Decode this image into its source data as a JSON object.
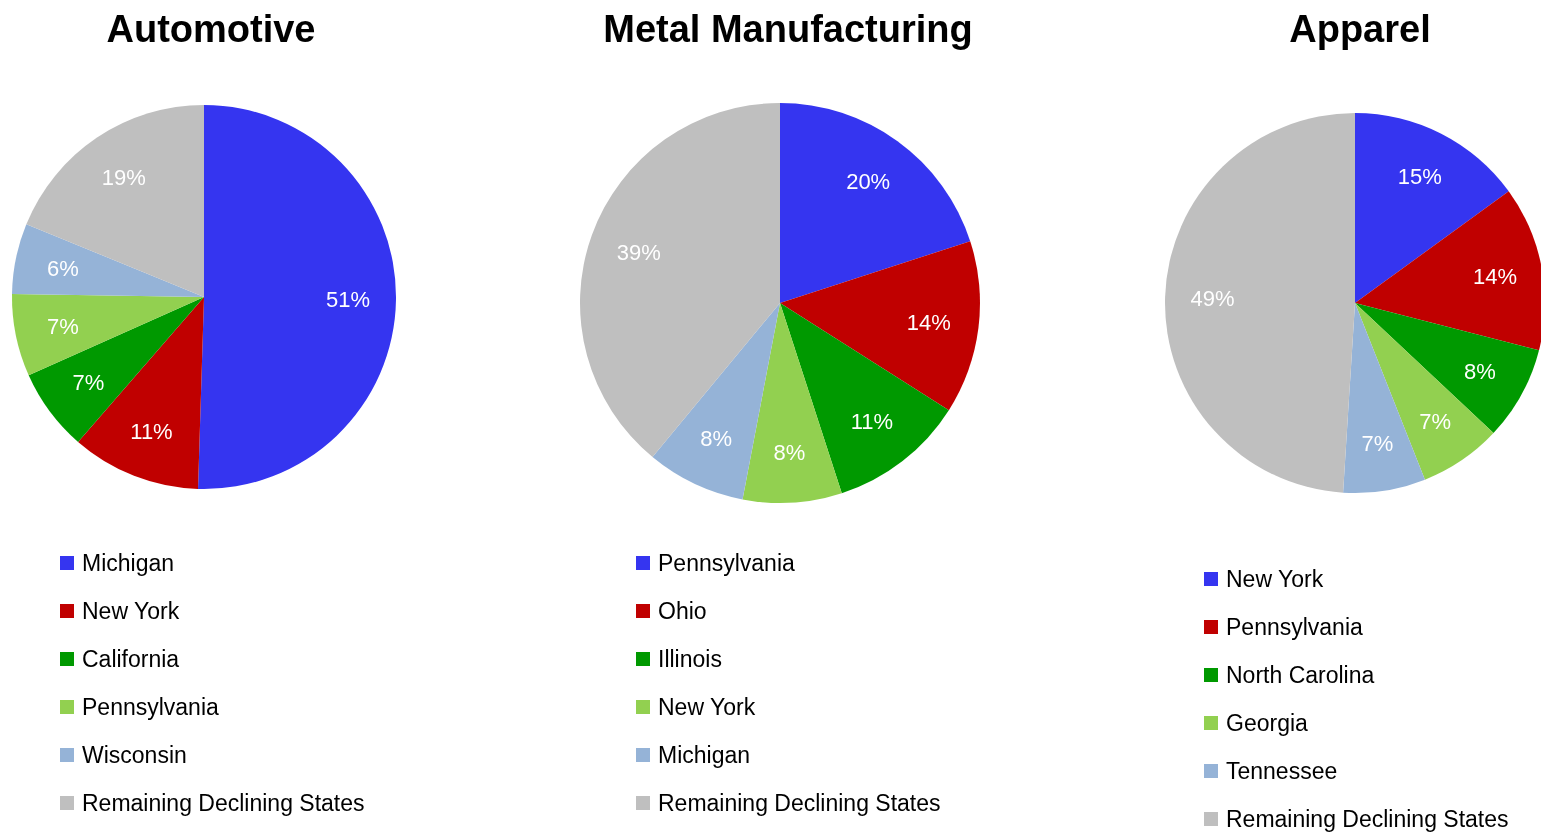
{
  "chart_data": [
    {
      "type": "pie",
      "title": "Automotive",
      "categories": [
        "Michigan",
        "New York",
        "California",
        "Pennsylvania",
        "Wisconsin",
        "Remaining Declining States"
      ],
      "values": [
        51,
        11,
        7,
        7,
        6,
        19
      ],
      "value_labels": [
        "51%",
        "11%",
        "7%",
        "7%",
        "6%",
        "19%"
      ],
      "colors": [
        "#3535f0",
        "#c00000",
        "#009900",
        "#92d050",
        "#95b3d7",
        "#bfbfbf"
      ],
      "legend": "bottom"
    },
    {
      "type": "pie",
      "title": "Metal Manufacturing",
      "categories": [
        "Pennsylvania",
        "Ohio",
        "Illinois",
        "New York",
        "Michigan",
        "Remaining Declining States"
      ],
      "values": [
        20,
        14,
        11,
        8,
        8,
        39
      ],
      "value_labels": [
        "20%",
        "14%",
        "11%",
        "8%",
        "8%",
        "39%"
      ],
      "colors": [
        "#3535f0",
        "#c00000",
        "#009900",
        "#92d050",
        "#95b3d7",
        "#bfbfbf"
      ],
      "legend": "bottom"
    },
    {
      "type": "pie",
      "title": "Apparel",
      "categories": [
        "New York",
        "Pennsylvania",
        "North Carolina",
        "Georgia",
        "Tennessee",
        "Remaining Declining States"
      ],
      "values": [
        15,
        14,
        8,
        7,
        7,
        49
      ],
      "value_labels": [
        "15%",
        "14%",
        "8%",
        "7%",
        "7%",
        "49%"
      ],
      "colors": [
        "#3535f0",
        "#c00000",
        "#009900",
        "#92d050",
        "#95b3d7",
        "#bfbfbf"
      ],
      "legend": "bottom"
    }
  ]
}
